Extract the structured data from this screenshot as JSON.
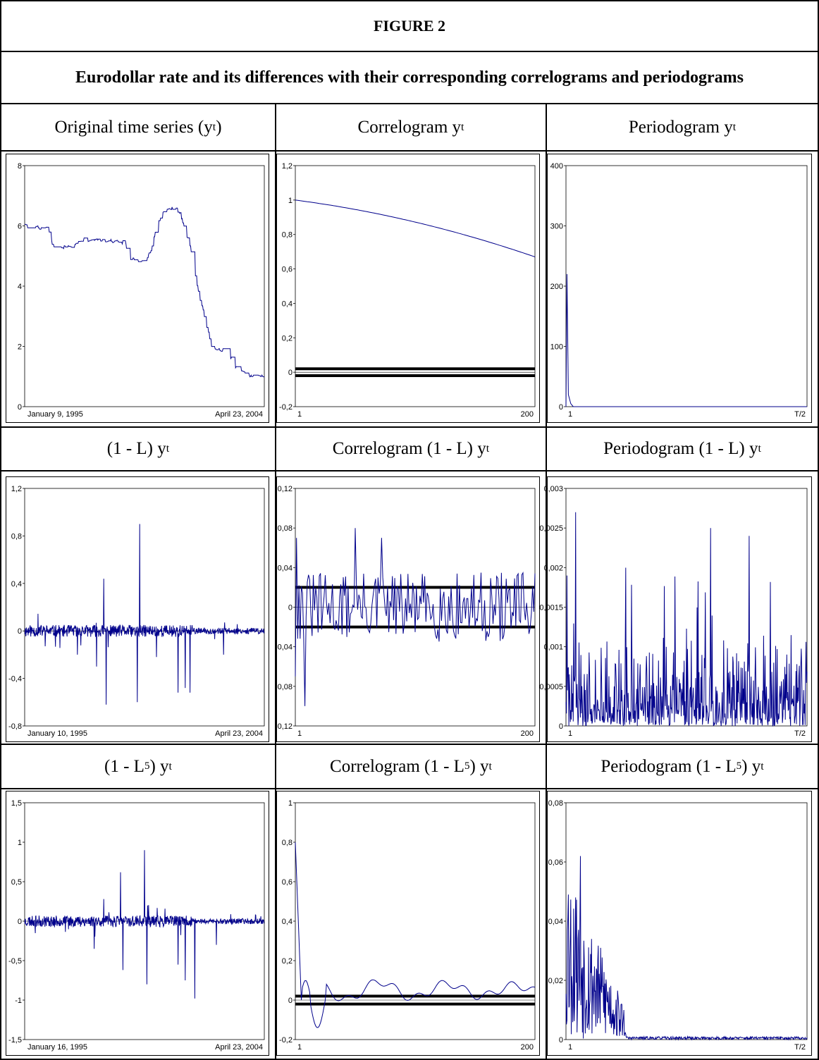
{
  "figure": {
    "title": "FIGURE 2",
    "subtitle": "Eurodollar rate and its differences with their corresponding correlograms and periodograms"
  },
  "rows": [
    {
      "headers": [
        {
          "text": "Original time series (y",
          "sub": "t",
          "sup": "",
          "tail": ")"
        },
        {
          "text": "Correlogram y",
          "sub": "t",
          "sup": "",
          "tail": ""
        },
        {
          "text": "Periodogram y",
          "sub": "t",
          "sup": "",
          "tail": ""
        }
      ]
    },
    {
      "headers": [
        {
          "text": "(1 - L) y",
          "sub": "t",
          "sup": "",
          "tail": ""
        },
        {
          "text": "Correlogram (1 - L) y",
          "sub": "t",
          "sup": "",
          "tail": ""
        },
        {
          "text": "Periodogram (1 - L) y",
          "sub": "t",
          "sup": "",
          "tail": ""
        }
      ]
    },
    {
      "headers": [
        {
          "text": "(1 - L",
          "sup": "5",
          "mid": ") y",
          "sub": "t"
        },
        {
          "text": "Correlogram (1 - L",
          "sup": "5",
          "mid": ") y",
          "sub": "t"
        },
        {
          "text": "Periodogram (1 - L",
          "sup": "5",
          "mid": ") y",
          "sub": "t"
        }
      ]
    }
  ],
  "chart_data": [
    {
      "type": "line",
      "kind": "series",
      "gen": "level",
      "yticks": [
        "8",
        "6",
        "4",
        "2",
        "0"
      ],
      "ytick_values": [
        8,
        6,
        4,
        2,
        0
      ],
      "ylim": [
        0,
        8
      ],
      "xlabels": [
        "January 9, 1995",
        "April 23, 2004"
      ],
      "line_color": "#00008b",
      "keypoints": [
        [
          0,
          6.0
        ],
        [
          0.1,
          5.9
        ],
        [
          0.12,
          5.3
        ],
        [
          0.2,
          5.3
        ],
        [
          0.24,
          5.55
        ],
        [
          0.35,
          5.5
        ],
        [
          0.42,
          5.45
        ],
        [
          0.44,
          4.9
        ],
        [
          0.5,
          4.8
        ],
        [
          0.53,
          5.2
        ],
        [
          0.55,
          6.0
        ],
        [
          0.58,
          6.5
        ],
        [
          0.63,
          6.6
        ],
        [
          0.65,
          6.4
        ],
        [
          0.7,
          5.0
        ],
        [
          0.72,
          4.0
        ],
        [
          0.75,
          3.0
        ],
        [
          0.78,
          2.0
        ],
        [
          0.85,
          1.8
        ],
        [
          0.88,
          1.3
        ],
        [
          0.92,
          1.1
        ],
        [
          0.95,
          1.0
        ],
        [
          1.0,
          1.0
        ]
      ]
    },
    {
      "type": "line",
      "kind": "acf",
      "gen": "acf0",
      "yticks": [
        "1,2",
        "1",
        "0,8",
        "0,6",
        "0,4",
        "0,2",
        "0",
        "-0,2"
      ],
      "ytick_values": [
        1.2,
        1,
        0.8,
        0.6,
        0.4,
        0.2,
        0,
        -0.2
      ],
      "ylim": [
        -0.2,
        1.2
      ],
      "xlabels": [
        "1",
        "200"
      ],
      "bands": [
        0.02,
        -0.02
      ],
      "line_color": "#00008b",
      "acf_start": 1.0,
      "acf_end": 0.67
    },
    {
      "type": "line",
      "kind": "periodogram",
      "gen": "per0",
      "yticks": [
        "400",
        "300",
        "200",
        "100",
        "0"
      ],
      "ytick_values": [
        400,
        300,
        200,
        100,
        0
      ],
      "ylim": [
        0,
        400
      ],
      "xlabels": [
        "1",
        "T/2"
      ],
      "line_color": "#00008b",
      "peak": 220
    },
    {
      "type": "line",
      "kind": "series",
      "gen": "diff1",
      "yticks": [
        "1,2",
        "0,8",
        "0,4",
        "0",
        "-0,4",
        "-0,8"
      ],
      "ytick_values": [
        1.2,
        0.8,
        0.4,
        0,
        -0.4,
        -0.8
      ],
      "ylim": [
        -0.8,
        1.2
      ],
      "xlabels": [
        "January 10, 1995",
        "April 23, 2004"
      ],
      "line_color": "#00008b",
      "spikes": [
        [
          0.33,
          0.44
        ],
        [
          0.34,
          -0.62
        ],
        [
          0.47,
          -0.6
        ],
        [
          0.48,
          0.9
        ],
        [
          0.55,
          -0.22
        ],
        [
          0.64,
          -0.52
        ],
        [
          0.67,
          -0.48
        ],
        [
          0.69,
          -0.52
        ],
        [
          0.83,
          -0.2
        ],
        [
          0.3,
          -0.3
        ],
        [
          0.22,
          -0.2
        ]
      ]
    },
    {
      "type": "line",
      "kind": "acf",
      "gen": "acf1",
      "yticks": [
        "0,12",
        "0,08",
        "0,04",
        "0",
        "-0,04",
        "-0,08",
        "-0,12"
      ],
      "ytick_values": [
        0.12,
        0.08,
        0.04,
        0,
        -0.04,
        -0.08,
        -0.12
      ],
      "ylim": [
        -0.12,
        0.12
      ],
      "xlabels": [
        "1",
        "200"
      ],
      "bands": [
        0.02,
        -0.02
      ],
      "line_color": "#00008b"
    },
    {
      "type": "line",
      "kind": "periodogram",
      "gen": "per1",
      "yticks": [
        "0,003",
        "0,0025",
        "0,002",
        "0,0015",
        "0,001",
        "0,0005",
        "0"
      ],
      "ytick_values": [
        0.003,
        0.0025,
        0.002,
        0.0015,
        0.001,
        0.0005,
        0
      ],
      "ylim": [
        0,
        0.003
      ],
      "xlabels": [
        "1",
        "T/2"
      ],
      "line_color": "#00008b"
    },
    {
      "type": "line",
      "kind": "series",
      "gen": "diff5",
      "yticks": [
        "1,5",
        "1",
        "0,5",
        "0",
        "-0,5",
        "-1",
        "-1,5"
      ],
      "ytick_values": [
        1.5,
        1,
        0.5,
        0,
        -0.5,
        -1,
        -1.5
      ],
      "ylim": [
        -1.5,
        1.5
      ],
      "xlabels": [
        "January 16, 1995",
        "April 23, 2004"
      ],
      "line_color": "#00008b",
      "spikes": [
        [
          0.4,
          0.62
        ],
        [
          0.41,
          -0.62
        ],
        [
          0.5,
          0.9
        ],
        [
          0.51,
          -0.8
        ],
        [
          0.64,
          -0.55
        ],
        [
          0.67,
          -0.75
        ],
        [
          0.71,
          -0.98
        ],
        [
          0.8,
          -0.3
        ],
        [
          0.33,
          0.28
        ],
        [
          0.29,
          -0.35
        ]
      ]
    },
    {
      "type": "line",
      "kind": "acf",
      "gen": "acf5",
      "yticks": [
        "1",
        "0,8",
        "0,6",
        "0,4",
        "0,2",
        "0",
        "-0,2"
      ],
      "ytick_values": [
        1,
        0.8,
        0.6,
        0.4,
        0.2,
        0,
        -0.2
      ],
      "ylim": [
        -0.2,
        1
      ],
      "xlabels": [
        "1",
        "200"
      ],
      "bands": [
        0.02,
        -0.02
      ],
      "line_color": "#00008b"
    },
    {
      "type": "line",
      "kind": "periodogram",
      "gen": "per5",
      "yticks": [
        "0,08",
        "0,06",
        "0,04",
        "0,02",
        "0"
      ],
      "ytick_values": [
        0.08,
        0.06,
        0.04,
        0.02,
        0
      ],
      "ylim": [
        0,
        0.08
      ],
      "xlabels": [
        "1",
        "T/2"
      ],
      "line_color": "#00008b"
    }
  ]
}
